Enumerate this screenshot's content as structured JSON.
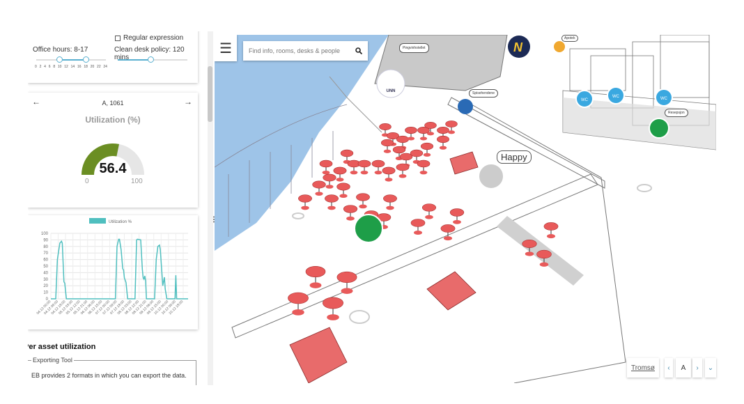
{
  "filters": {
    "regex_label": "Regular expression",
    "office_hours_label": "Office hours: 8-17",
    "office_hours": [
      8,
      17
    ],
    "clean_desk_label": "Clean desk policy: 120 mins",
    "clean_desk_mins": 120,
    "hour_ticks": [
      "0",
      "2",
      "4",
      "6",
      "8",
      "10",
      "12",
      "14",
      "16",
      "18",
      "20",
      "22",
      "24"
    ]
  },
  "gauge": {
    "asset": "A, 1061",
    "title": "Utilization (%)",
    "value": "56.4",
    "value_num": 56.4,
    "min": "0",
    "max": "100",
    "color": "#6b8e23",
    "track": "#e6e6e6"
  },
  "chart_data": {
    "type": "line",
    "legend": "Utilization %",
    "legend_position": "top",
    "color": "#4fbfbf",
    "ylim": [
      0,
      100
    ],
    "yticks": [
      "0",
      "10",
      "20",
      "30",
      "40",
      "50",
      "60",
      "70",
      "80",
      "90",
      "100"
    ],
    "grid": true,
    "xlim": [
      "04.12 00:00",
      "11.12 00:00"
    ],
    "xticks": [
      "04.12 00:00",
      "04.12 09:00",
      "04.12 18:00",
      "05.12 03:00",
      "05.12 12:00",
      "05.12 21:00",
      "06.12 06:00",
      "06.12 15:00",
      "07.12 00:00",
      "07.12 09:00",
      "07.12 18:00",
      "08.12 03:00",
      "08.12 12:00",
      "08.12 21:00",
      "09.12 06:00",
      "09.12 15:00",
      "10.12 00:00",
      "10.12 09:00",
      "10.12 18:00"
    ],
    "points": [
      [
        "04.12 00:00",
        0
      ],
      [
        "04.12 06:00",
        0
      ],
      [
        "04.12 08:00",
        60
      ],
      [
        "04.12 11:00",
        85
      ],
      [
        "04.12 13:00",
        88
      ],
      [
        "04.12 14:00",
        85
      ],
      [
        "04.12 16:00",
        26
      ],
      [
        "04.12 17:00",
        24
      ],
      [
        "04.12 19:00",
        0
      ],
      [
        "07.12 07:00",
        0
      ],
      [
        "07.12 09:00",
        80
      ],
      [
        "07.12 11:00",
        91
      ],
      [
        "07.12 12:00",
        91
      ],
      [
        "07.12 14:00",
        75
      ],
      [
        "07.12 16:00",
        46
      ],
      [
        "07.12 17:00",
        44
      ],
      [
        "07.12 18:00",
        32
      ],
      [
        "07.12 20:00",
        25
      ],
      [
        "07.12 22:00",
        0
      ],
      [
        "08.12 07:00",
        0
      ],
      [
        "08.12 09:00",
        90
      ],
      [
        "08.12 10:00",
        91
      ],
      [
        "08.12 14:00",
        90
      ],
      [
        "08.12 16:00",
        45
      ],
      [
        "08.12 17:00",
        32
      ],
      [
        "08.12 18:00",
        30
      ],
      [
        "08.12 19:00",
        35
      ],
      [
        "08.12 20:00",
        28
      ],
      [
        "08.12 21:00",
        0
      ],
      [
        "09.12 07:00",
        0
      ],
      [
        "09.12 09:00",
        60
      ],
      [
        "09.12 11:00",
        80
      ],
      [
        "09.12 13:00",
        82
      ],
      [
        "09.12 14:00",
        75
      ],
      [
        "09.12 17:00",
        20
      ],
      [
        "09.12 19:00",
        33
      ],
      [
        "09.12 20:00",
        15
      ],
      [
        "09.12 22:00",
        0
      ],
      [
        "10.12 08:00",
        0
      ],
      [
        "10.12 09:00",
        36
      ],
      [
        "10.12 10:00",
        0
      ],
      [
        "11.12 00:00",
        0
      ]
    ]
  },
  "section": {
    "title": "Per asset utilization",
    "export_legend": "Exporting Tool",
    "export_text": "EB provides 2 formats in which you can export the data."
  },
  "map": {
    "search_placeholder": "Find info, rooms, desks & people",
    "labels": {
      "pingvin": "Pingvinhotellet",
      "unn": "UNN",
      "spisekrok": "Spisehendene",
      "apotek": "Apotek",
      "wc": "WC",
      "resepsjon": "Resepsjon",
      "happy": "Happy"
    },
    "water_color": "#9ec4e8",
    "desk_color": "#e85a5a"
  },
  "floor_nav": {
    "building": "Tromsø",
    "floor": "A"
  }
}
